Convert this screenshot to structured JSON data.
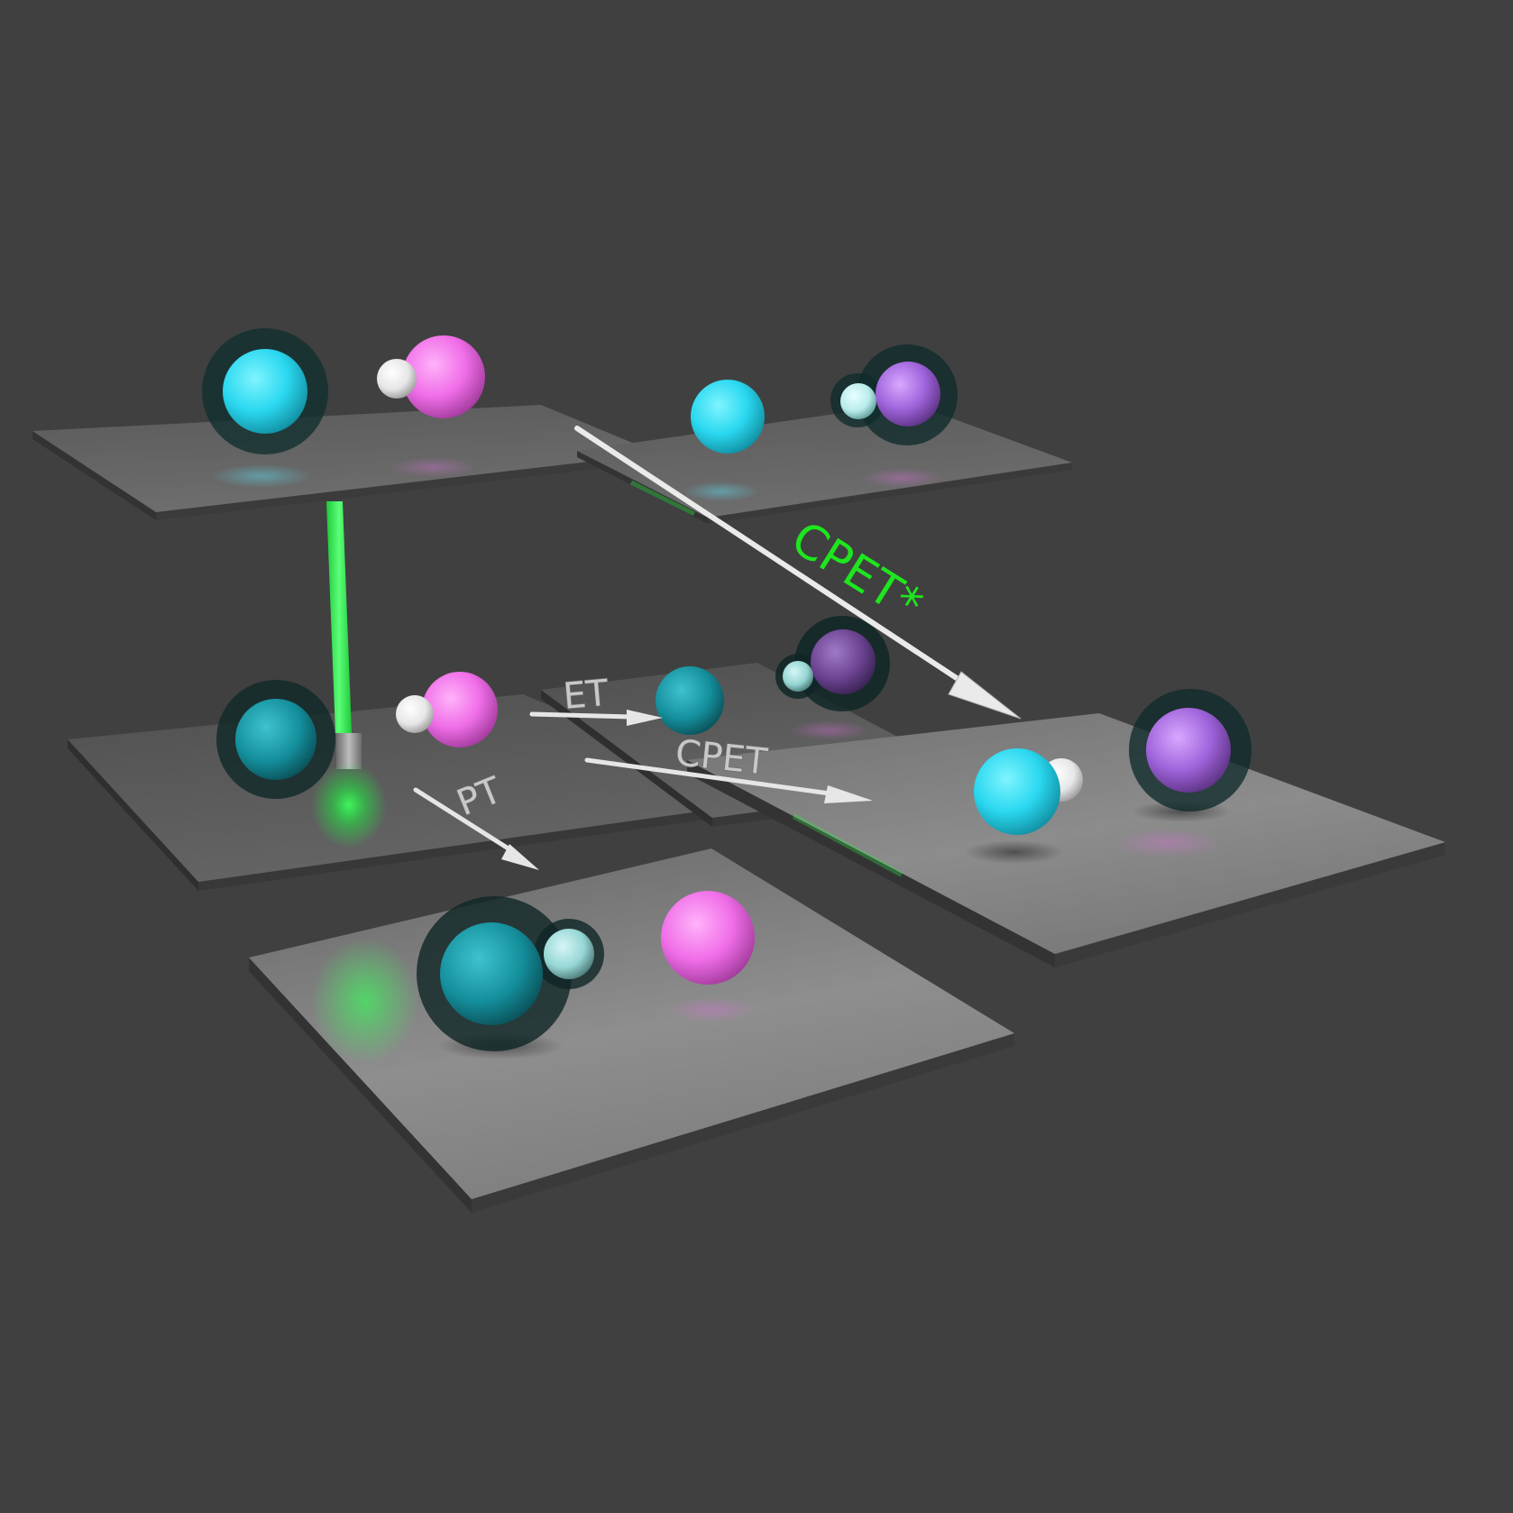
{
  "labels": {
    "cpet_star": "CPET*",
    "et": "ET",
    "cpet": "CPET",
    "pt": "PT"
  },
  "colors": {
    "background": "#404040",
    "electron_acceptor": "#2ad8f0",
    "proton_donor": "#f06ee8",
    "oxidized": "#a064dc",
    "proton": "#f2f2f2",
    "excitation": "#2ef04a",
    "arrow": "#e6e6e6"
  }
}
